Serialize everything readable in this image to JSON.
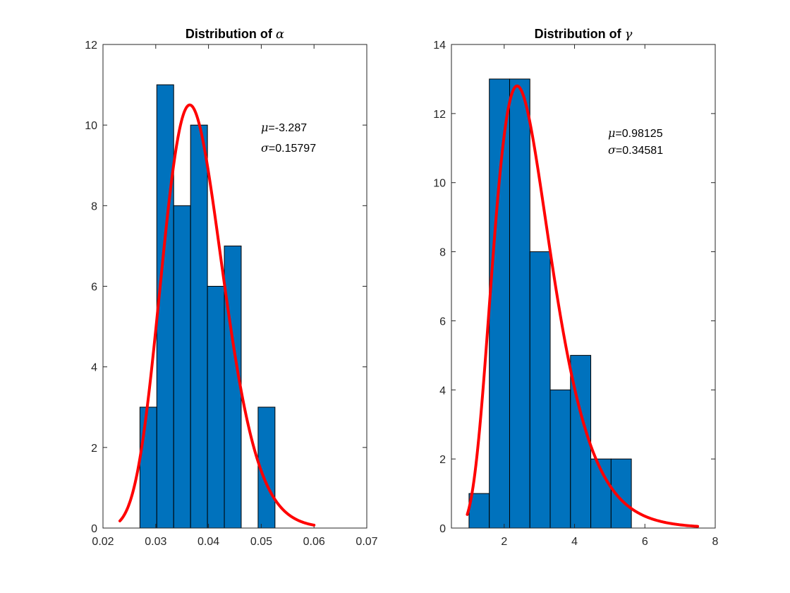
{
  "chart_data": [
    {
      "type": "bar",
      "subtype": "histogram-with-fit",
      "title_prefix": "Distribution of ",
      "title_symbol": "α",
      "xlim": [
        0.02,
        0.07
      ],
      "ylim": [
        0,
        12
      ],
      "xticks": [
        0.02,
        0.03,
        0.04,
        0.05,
        0.06,
        0.07
      ],
      "xtick_labels": [
        "0.02",
        "0.03",
        "0.04",
        "0.05",
        "0.06",
        "0.07"
      ],
      "yticks": [
        0,
        2,
        4,
        6,
        8,
        10,
        12
      ],
      "ytick_labels": [
        "0",
        "2",
        "4",
        "6",
        "8",
        "10",
        "12"
      ],
      "bins": [
        {
          "x0": 0.027,
          "x1": 0.0302,
          "count": 3
        },
        {
          "x0": 0.0302,
          "x1": 0.0334,
          "count": 11
        },
        {
          "x0": 0.0334,
          "x1": 0.0366,
          "count": 8
        },
        {
          "x0": 0.0366,
          "x1": 0.0398,
          "count": 10
        },
        {
          "x0": 0.0398,
          "x1": 0.043,
          "count": 6
        },
        {
          "x0": 0.043,
          "x1": 0.0462,
          "count": 7
        },
        {
          "x0": 0.0494,
          "x1": 0.0526,
          "count": 3
        }
      ],
      "fit": {
        "distribution": "lognormal",
        "mu": -3.287,
        "sigma": 0.15797,
        "x_range": [
          0.0232,
          0.06
        ],
        "peak": 10.5,
        "color": "#ff0000"
      },
      "bar_color": "#0072bd",
      "annotation": {
        "mu_symbol": "μ",
        "mu_text": "=-3.287",
        "sigma_symbol": "σ",
        "sigma_text": "=0.15797"
      }
    },
    {
      "type": "bar",
      "subtype": "histogram-with-fit",
      "title_prefix": "Distribution of ",
      "title_symbol": "γ",
      "xlim": [
        0.5,
        8
      ],
      "ylim": [
        0,
        14
      ],
      "xticks": [
        2,
        4,
        6,
        8
      ],
      "xtick_labels": [
        "2",
        "4",
        "6",
        "8"
      ],
      "yticks": [
        0,
        2,
        4,
        6,
        8,
        10,
        12,
        14
      ],
      "ytick_labels": [
        "0",
        "2",
        "4",
        "6",
        "8",
        "10",
        "12",
        "14"
      ],
      "bins": [
        {
          "x0": 1.0,
          "x1": 1.577,
          "count": 1
        },
        {
          "x0": 1.577,
          "x1": 2.154,
          "count": 13
        },
        {
          "x0": 2.154,
          "x1": 2.731,
          "count": 13
        },
        {
          "x0": 2.731,
          "x1": 3.308,
          "count": 8
        },
        {
          "x0": 3.308,
          "x1": 3.885,
          "count": 4
        },
        {
          "x0": 3.885,
          "x1": 4.462,
          "count": 5
        },
        {
          "x0": 4.462,
          "x1": 5.039,
          "count": 2
        },
        {
          "x0": 5.039,
          "x1": 5.616,
          "count": 2
        }
      ],
      "fit": {
        "distribution": "lognormal",
        "mu": 0.98125,
        "sigma": 0.34581,
        "x_range": [
          0.95,
          7.5
        ],
        "peak": 12.8,
        "color": "#ff0000"
      },
      "bar_color": "#0072bd",
      "annotation": {
        "mu_symbol": "μ",
        "mu_text": "=0.98125",
        "sigma_symbol": "σ",
        "sigma_text": "=0.34581"
      }
    }
  ]
}
